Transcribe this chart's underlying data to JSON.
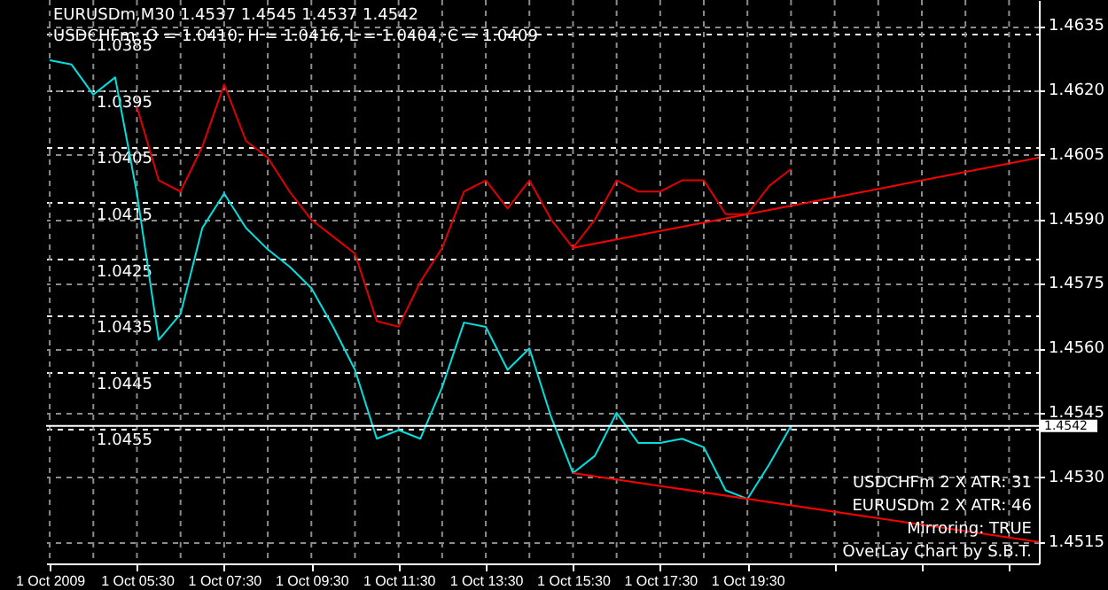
{
  "chart_data": {
    "type": "line",
    "title": "EURUSDm,M30  1.4537 1.4545 1.4537 1.4542",
    "subtitle": "USDCHFm: O = 1.0410, H = 1.0416, L = 1.0404, C = 1.0409",
    "annotations": [
      "USDCHFm 2 X ATR: 31",
      "EURUSDm 2 X ATR: 46",
      "Mirroring: TRUE",
      "OverLay Chart by S.B.T."
    ],
    "xlim": [
      "2009-10-01T03:25",
      "2009-10-02T02:11"
    ],
    "xticks": [
      {
        "value": "2009-10-01T03:30",
        "label": "1 Oct 2009"
      },
      {
        "value": "2009-10-01T04:30",
        "label": null
      },
      {
        "value": "2009-10-01T05:30",
        "label": "1 Oct 05:30"
      },
      {
        "value": "2009-10-01T06:30",
        "label": null
      },
      {
        "value": "2009-10-01T07:30",
        "label": "1 Oct 07:30"
      },
      {
        "value": "2009-10-01T08:30",
        "label": null
      },
      {
        "value": "2009-10-01T09:30",
        "label": "1 Oct 09:30"
      },
      {
        "value": "2009-10-01T10:30",
        "label": null
      },
      {
        "value": "2009-10-01T11:30",
        "label": "1 Oct 11:30"
      },
      {
        "value": "2009-10-01T12:30",
        "label": null
      },
      {
        "value": "2009-10-01T13:30",
        "label": "1 Oct 13:30"
      },
      {
        "value": "2009-10-01T14:30",
        "label": null
      },
      {
        "value": "2009-10-01T15:30",
        "label": "1 Oct 15:30"
      },
      {
        "value": "2009-10-01T16:30",
        "label": null
      },
      {
        "value": "2009-10-01T17:30",
        "label": "1 Oct 17:30"
      },
      {
        "value": "2009-10-01T18:30",
        "label": null
      },
      {
        "value": "2009-10-01T19:30",
        "label": "1 Oct 19:30"
      },
      {
        "value": "2009-10-01T20:30",
        "label": null
      },
      {
        "value": "2009-10-01T21:30",
        "label": null
      },
      {
        "value": "2009-10-01T22:30",
        "label": null
      },
      {
        "value": "2009-10-01T23:30",
        "label": null
      },
      {
        "value": "2009-10-02T00:30",
        "label": null
      },
      {
        "value": "2009-10-02T01:30",
        "label": null
      }
    ],
    "ylim": [
      1.0479,
      1.0379
    ],
    "yticks": [
      1.0385,
      1.0395,
      1.0405,
      1.0415,
      1.0425,
      1.0435,
      1.0445,
      1.0455
    ],
    "y2lim": [
      1.451,
      1.4641
    ],
    "y2ticks": [
      1.4515,
      {
        "value": 1.453,
        "label": "1.4530"
      },
      1.4545,
      {
        "value": 1.456,
        "label": "1.4560"
      },
      1.4575,
      {
        "value": 1.459,
        "label": "1.4590"
      },
      1.4605,
      {
        "value": 1.462,
        "label": "1.4620"
      },
      1.4635
    ],
    "grid": true,
    "series": [
      {
        "axis": "y",
        "color": "#e00000",
        "x": [
          "2009-10-01T05:30",
          "2009-10-01T06:00",
          "2009-10-01T06:30",
          "2009-10-01T07:00",
          "2009-10-01T07:30",
          "2009-10-01T08:00",
          "2009-10-01T08:30",
          "2009-10-01T09:00",
          "2009-10-01T09:30",
          "2009-10-01T10:00",
          "2009-10-01T10:30",
          "2009-10-01T11:00",
          "2009-10-01T11:30",
          "2009-10-01T12:00",
          "2009-10-01T12:30",
          "2009-10-01T13:00",
          "2009-10-01T13:30",
          "2009-10-01T14:00",
          "2009-10-01T14:30",
          "2009-10-01T15:00",
          "2009-10-01T15:30",
          "2009-10-01T16:00",
          "2009-10-01T16:30",
          "2009-10-01T17:00",
          "2009-10-01T17:30",
          "2009-10-01T18:00",
          "2009-10-01T18:30",
          "2009-10-01T19:00",
          "2009-10-01T19:30",
          "2009-10-01T20:00",
          "2009-10-01T20:30"
        ],
        "values": [
          1.0398,
          1.0411,
          1.0413,
          1.0405,
          1.0394,
          1.0404,
          1.0407,
          1.0413,
          1.0418,
          1.0421,
          1.0424,
          1.0436,
          1.0437,
          1.0429,
          1.0423,
          1.0413,
          1.0411,
          1.0416,
          1.0411,
          1.0418,
          1.0423,
          1.0418,
          1.0411,
          1.0413,
          1.0413,
          1.0411,
          1.0411,
          1.0417,
          1.0417,
          1.0412,
          1.0409
        ]
      },
      {
        "axis": "y2",
        "color": "#00e0e0",
        "x": [
          "2009-10-01T03:30",
          "2009-10-01T04:00",
          "2009-10-01T04:30",
          "2009-10-01T05:00",
          "2009-10-01T05:30",
          "2009-10-01T06:00",
          "2009-10-01T06:30",
          "2009-10-01T07:00",
          "2009-10-01T07:30",
          "2009-10-01T08:00",
          "2009-10-01T08:30",
          "2009-10-01T09:00",
          "2009-10-01T09:30",
          "2009-10-01T10:00",
          "2009-10-01T10:30",
          "2009-10-01T11:00",
          "2009-10-01T11:30",
          "2009-10-01T12:00",
          "2009-10-01T12:30",
          "2009-10-01T13:00",
          "2009-10-01T13:30",
          "2009-10-01T14:00",
          "2009-10-01T14:30",
          "2009-10-01T15:00",
          "2009-10-01T15:30",
          "2009-10-01T16:00",
          "2009-10-01T16:30",
          "2009-10-01T17:00",
          "2009-10-01T17:30",
          "2009-10-01T18:00",
          "2009-10-01T18:30",
          "2009-10-01T19:00",
          "2009-10-01T19:30",
          "2009-10-01T20:00",
          "2009-10-01T20:30"
        ],
        "values": [
          1.4627,
          1.4626,
          1.4619,
          1.4623,
          1.4596,
          1.4562,
          1.4568,
          1.4588,
          1.4596,
          1.4588,
          1.4583,
          1.4579,
          1.4574,
          1.4565,
          1.4555,
          1.4539,
          1.4541,
          1.4539,
          1.4551,
          1.4566,
          1.4565,
          1.4555,
          1.456,
          1.4544,
          1.4531,
          1.4535,
          1.4545,
          1.4538,
          1.4538,
          1.4539,
          1.4537,
          1.4527,
          1.4525,
          1.4533,
          1.4542
        ]
      },
      {
        "axis": "y",
        "color": "#ff0000",
        "x": [
          "2009-10-01T15:30",
          "2009-10-02T02:11"
        ],
        "values": [
          1.0423,
          1.0407
        ]
      },
      {
        "axis": "y2",
        "color": "#ff0000",
        "x": [
          "2009-10-01T15:30",
          "2009-10-02T02:11"
        ],
        "values": [
          1.4531,
          1.4515
        ]
      }
    ],
    "ref_lines": [
      {
        "axis": "y2",
        "value": 1.4542,
        "label": "1.4542",
        "color": "#ffffff"
      }
    ]
  }
}
